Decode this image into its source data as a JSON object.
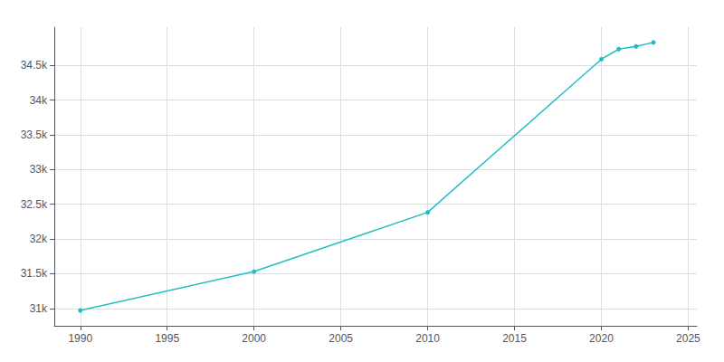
{
  "chart_data": {
    "type": "line",
    "x": [
      1990,
      2000,
      2010,
      2020,
      2021,
      2022,
      2023
    ],
    "values": [
      30971,
      31531,
      32384,
      34588,
      34734,
      34773,
      34830
    ],
    "color": "#22BDC3",
    "marker": "circle",
    "xlim": [
      1988.5,
      2025.5
    ],
    "xticks": [
      1990,
      1995,
      2000,
      2005,
      2010,
      2015,
      2020,
      2025
    ],
    "ylim": [
      30750,
      35050
    ],
    "yticks": [
      {
        "value": 31000,
        "label": "31k"
      },
      {
        "value": 31500,
        "label": "31.5k"
      },
      {
        "value": 32000,
        "label": "32k"
      },
      {
        "value": 32500,
        "label": "32.5k"
      },
      {
        "value": 33000,
        "label": "33k"
      },
      {
        "value": 33500,
        "label": "33.5k"
      },
      {
        "value": 34000,
        "label": "34k"
      },
      {
        "value": 34500,
        "label": "34.5k"
      }
    ],
    "grid": true
  }
}
